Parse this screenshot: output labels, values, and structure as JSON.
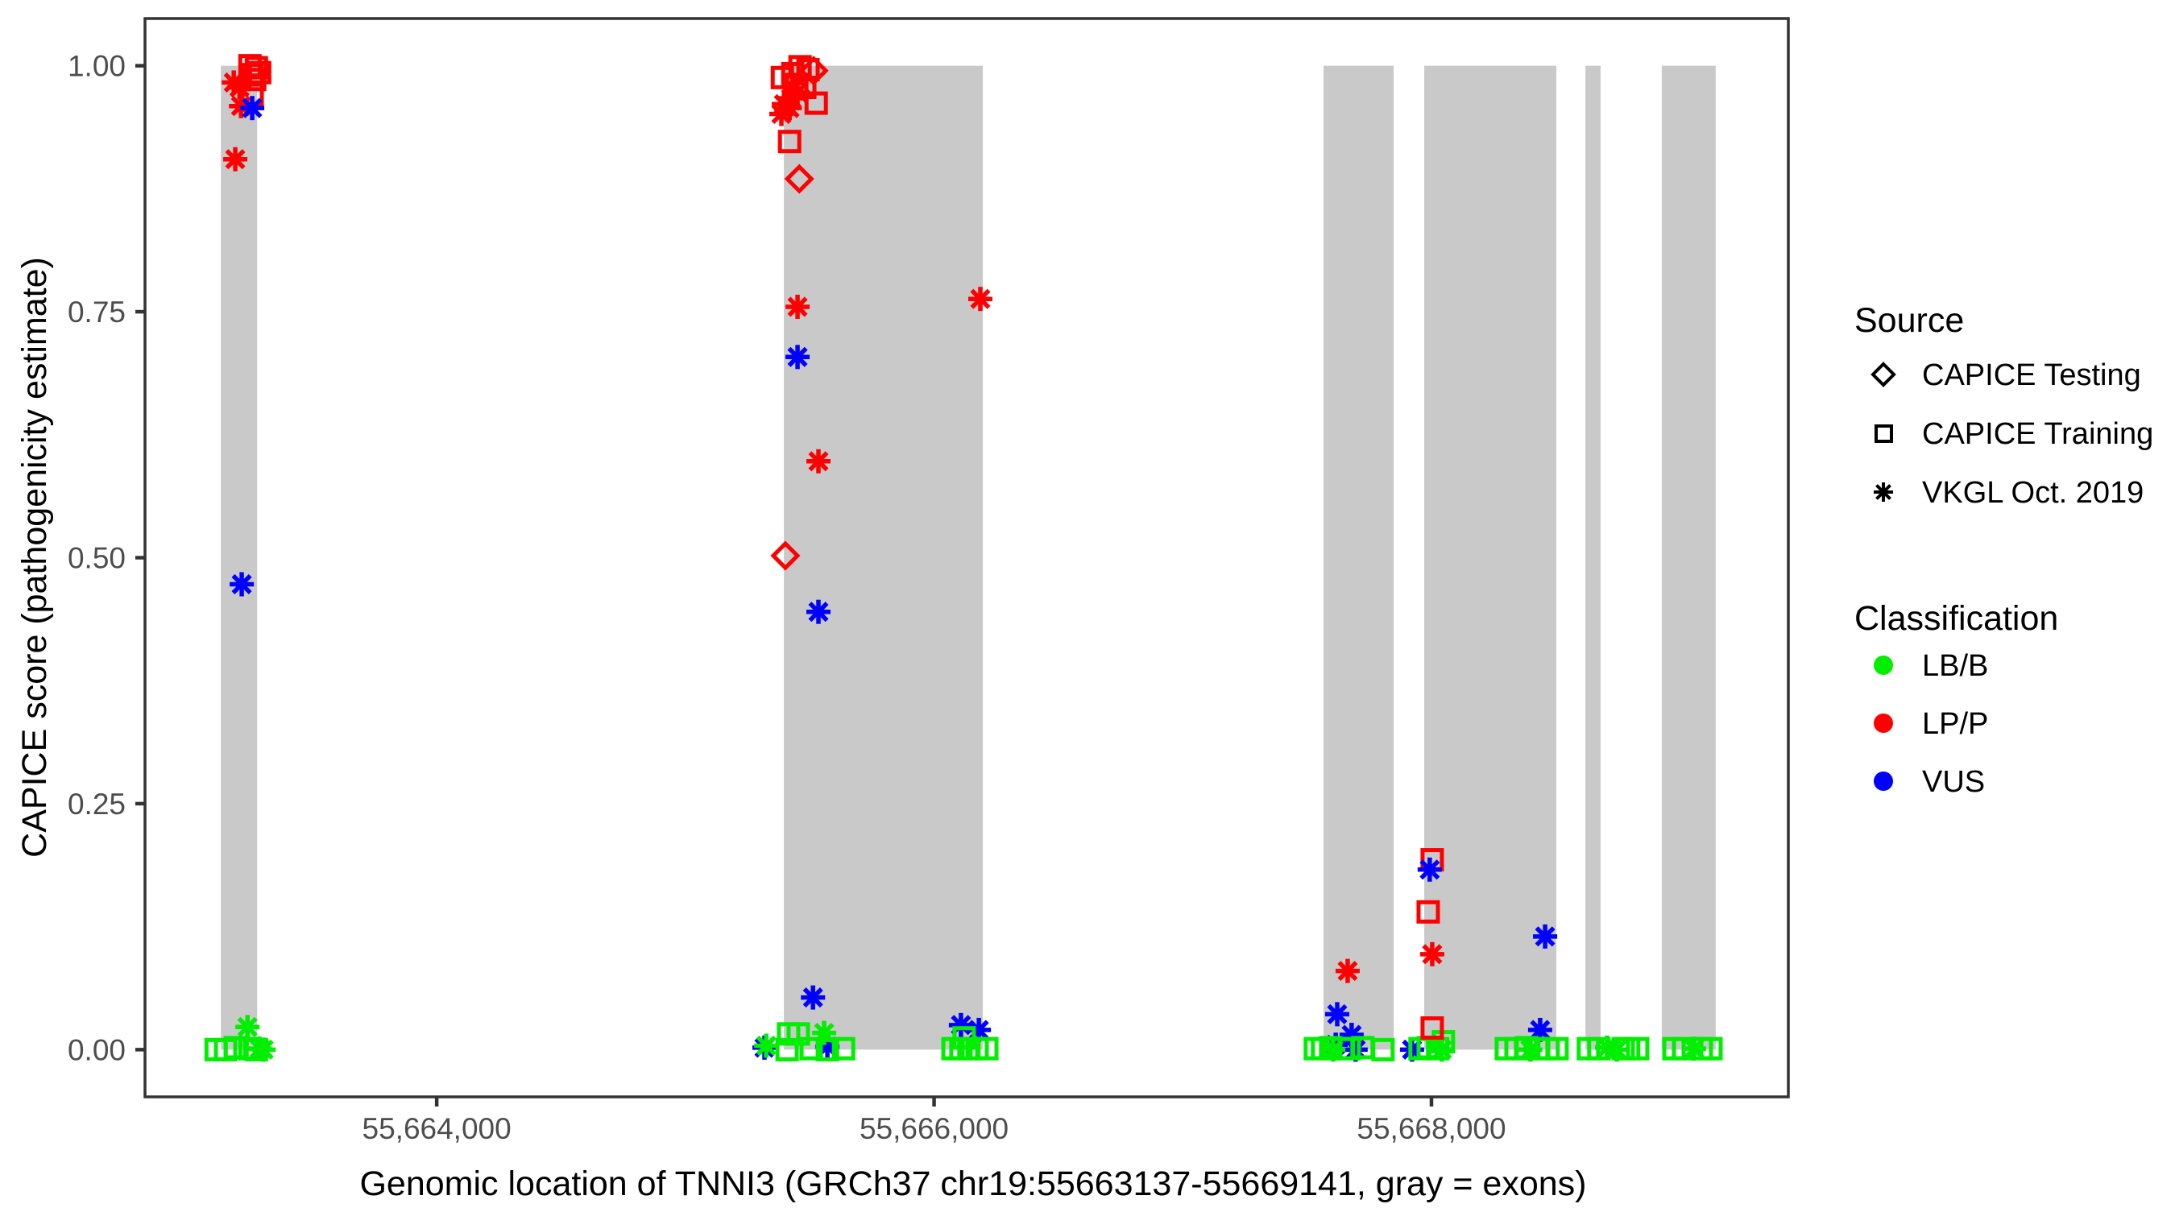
{
  "chart_data": {
    "type": "scatter",
    "title": "",
    "xlabel": "Genomic location of TNNI3 (GRCh37 chr19:55663137-55669141, gray = exons)",
    "ylabel": "CAPICE score (pathogenicity estimate)",
    "xlim": [
      55662827,
      55669435
    ],
    "ylim": [
      -0.048,
      1.048
    ],
    "grid": false,
    "panel_background": "#FFFFFF",
    "panel_border_color": "#333333",
    "x_ticks": [
      {
        "value": 55664000,
        "label": "55,664,000"
      },
      {
        "value": 55666000,
        "label": "55,666,000"
      },
      {
        "value": 55668000,
        "label": "55,668,000"
      }
    ],
    "y_ticks": [
      {
        "value": 0.0,
        "label": "0.00"
      },
      {
        "value": 0.25,
        "label": "0.25"
      },
      {
        "value": 0.5,
        "label": "0.50"
      },
      {
        "value": 0.75,
        "label": "0.75"
      },
      {
        "value": 1.0,
        "label": "1.00"
      }
    ],
    "exon_color": "#C9C9C9",
    "exons": [
      [
        55663132,
        55663278
      ],
      [
        55665396,
        55666196
      ],
      [
        55667566,
        55667848
      ],
      [
        55667971,
        55668502
      ],
      [
        55668619,
        55668680
      ],
      [
        55668926,
        55669143
      ]
    ],
    "shape_by_source": {
      "CAPICE Testing": "diamond",
      "CAPICE Training": "square",
      "VKGL Oct. 2019": "asterisk"
    },
    "color_by_class": {
      "LB/B": "#00EE00",
      "LP/P": "#FF0000",
      "VUS": "#0000FF"
    },
    "points": [
      {
        "x": 55663249,
        "y": 1.0,
        "source": "CAPICE Training",
        "class": "LP/P"
      },
      {
        "x": 55663275,
        "y": 0.998,
        "source": "CAPICE Training",
        "class": "LP/P"
      },
      {
        "x": 55663288,
        "y": 0.993,
        "source": "CAPICE Training",
        "class": "LP/P"
      },
      {
        "x": 55663258,
        "y": 0.991,
        "source": "CAPICE Training",
        "class": "LP/P"
      },
      {
        "x": 55663268,
        "y": 0.986,
        "source": "CAPICE Training",
        "class": "LP/P"
      },
      {
        "x": 55663258,
        "y": 0.971,
        "source": "CAPICE Training",
        "class": "LP/P"
      },
      {
        "x": 55663184,
        "y": 0.983,
        "source": "VKGL Oct. 2019",
        "class": "LP/P"
      },
      {
        "x": 55663207,
        "y": 0.978,
        "source": "VKGL Oct. 2019",
        "class": "LP/P"
      },
      {
        "x": 55663213,
        "y": 0.959,
        "source": "VKGL Oct. 2019",
        "class": "LP/P"
      },
      {
        "x": 55663190,
        "y": 0.905,
        "source": "VKGL Oct. 2019",
        "class": "LP/P"
      },
      {
        "x": 55663258,
        "y": 0.957,
        "source": "VKGL Oct. 2019",
        "class": "VUS"
      },
      {
        "x": 55663216,
        "y": 0.473,
        "source": "VKGL Oct. 2019",
        "class": "VUS"
      },
      {
        "x": 55663113,
        "y": 0.0,
        "source": "CAPICE Training",
        "class": "LB/B"
      },
      {
        "x": 55663151,
        "y": 0.0,
        "source": "CAPICE Training",
        "class": "LB/B"
      },
      {
        "x": 55663190,
        "y": 0.002,
        "source": "CAPICE Training",
        "class": "LB/B"
      },
      {
        "x": 55663249,
        "y": 0.001,
        "source": "CAPICE Training",
        "class": "LB/B"
      },
      {
        "x": 55663275,
        "y": 0.0,
        "source": "CAPICE Training",
        "class": "LB/B"
      },
      {
        "x": 55663239,
        "y": 0.023,
        "source": "VKGL Oct. 2019",
        "class": "LB/B"
      },
      {
        "x": 55663288,
        "y": 0.001,
        "source": "VKGL Oct. 2019",
        "class": "LB/B"
      },
      {
        "x": 55663304,
        "y": 0.0,
        "source": "VKGL Oct. 2019",
        "class": "LB/B"
      },
      {
        "x": 55665390,
        "y": 0.988,
        "source": "CAPICE Training",
        "class": "LP/P"
      },
      {
        "x": 55665432,
        "y": 0.992,
        "source": "CAPICE Training",
        "class": "LP/P"
      },
      {
        "x": 55665461,
        "y": 0.999,
        "source": "CAPICE Training",
        "class": "LP/P"
      },
      {
        "x": 55665493,
        "y": 0.996,
        "source": "CAPICE Training",
        "class": "LP/P"
      },
      {
        "x": 55665448,
        "y": 0.981,
        "source": "CAPICE Training",
        "class": "LP/P"
      },
      {
        "x": 55665480,
        "y": 0.978,
        "source": "CAPICE Training",
        "class": "LP/P"
      },
      {
        "x": 55665526,
        "y": 0.962,
        "source": "CAPICE Training",
        "class": "LP/P"
      },
      {
        "x": 55665419,
        "y": 0.923,
        "source": "CAPICE Training",
        "class": "LP/P"
      },
      {
        "x": 55665516,
        "y": 0.995,
        "source": "CAPICE Testing",
        "class": "LP/P"
      },
      {
        "x": 55665458,
        "y": 0.885,
        "source": "CAPICE Testing",
        "class": "LP/P"
      },
      {
        "x": 55665451,
        "y": 0.973,
        "source": "VKGL Oct. 2019",
        "class": "LP/P"
      },
      {
        "x": 55665425,
        "y": 0.967,
        "source": "VKGL Oct. 2019",
        "class": "LP/P"
      },
      {
        "x": 55665396,
        "y": 0.961,
        "source": "VKGL Oct. 2019",
        "class": "LP/P"
      },
      {
        "x": 55665419,
        "y": 0.957,
        "source": "VKGL Oct. 2019",
        "class": "LP/P"
      },
      {
        "x": 55665386,
        "y": 0.951,
        "source": "VKGL Oct. 2019",
        "class": "LP/P"
      },
      {
        "x": 55665451,
        "y": 0.755,
        "source": "VKGL Oct. 2019",
        "class": "LP/P"
      },
      {
        "x": 55666186,
        "y": 0.763,
        "source": "VKGL Oct. 2019",
        "class": "LP/P"
      },
      {
        "x": 55665535,
        "y": 0.598,
        "source": "VKGL Oct. 2019",
        "class": "LP/P"
      },
      {
        "x": 55665402,
        "y": 0.502,
        "source": "CAPICE Testing",
        "class": "LP/P"
      },
      {
        "x": 55665451,
        "y": 0.704,
        "source": "VKGL Oct. 2019",
        "class": "VUS"
      },
      {
        "x": 55665535,
        "y": 0.445,
        "source": "VKGL Oct. 2019",
        "class": "VUS"
      },
      {
        "x": 55665513,
        "y": 0.053,
        "source": "VKGL Oct. 2019",
        "class": "VUS"
      },
      {
        "x": 55665318,
        "y": 0.002,
        "source": "VKGL Oct. 2019",
        "class": "VUS"
      },
      {
        "x": 55665571,
        "y": 0.003,
        "source": "VKGL Oct. 2019",
        "class": "VUS"
      },
      {
        "x": 55666108,
        "y": 0.025,
        "source": "VKGL Oct. 2019",
        "class": "VUS"
      },
      {
        "x": 55666180,
        "y": 0.02,
        "source": "VKGL Oct. 2019",
        "class": "VUS"
      },
      {
        "x": 55665325,
        "y": 0.004,
        "source": "VKGL Oct. 2019",
        "class": "LB/B"
      },
      {
        "x": 55665558,
        "y": 0.017,
        "source": "VKGL Oct. 2019",
        "class": "LB/B"
      },
      {
        "x": 55665415,
        "y": 0.016,
        "source": "CAPICE Training",
        "class": "LB/B"
      },
      {
        "x": 55665454,
        "y": 0.016,
        "source": "CAPICE Training",
        "class": "LB/B"
      },
      {
        "x": 55665409,
        "y": 0.0,
        "source": "CAPICE Training",
        "class": "LB/B"
      },
      {
        "x": 55665506,
        "y": 0.001,
        "source": "CAPICE Training",
        "class": "LB/B"
      },
      {
        "x": 55665571,
        "y": 0.0,
        "source": "CAPICE Training",
        "class": "LB/B"
      },
      {
        "x": 55665636,
        "y": 0.001,
        "source": "CAPICE Training",
        "class": "LB/B"
      },
      {
        "x": 55666076,
        "y": 0.001,
        "source": "CAPICE Training",
        "class": "LB/B"
      },
      {
        "x": 55666108,
        "y": 0.001,
        "source": "CAPICE Training",
        "class": "LB/B"
      },
      {
        "x": 55666140,
        "y": 0.001,
        "source": "CAPICE Training",
        "class": "LB/B"
      },
      {
        "x": 55666173,
        "y": 0.001,
        "source": "CAPICE Training",
        "class": "LB/B"
      },
      {
        "x": 55666212,
        "y": 0.001,
        "source": "CAPICE Training",
        "class": "LB/B"
      },
      {
        "x": 55666121,
        "y": 0.012,
        "source": "CAPICE Training",
        "class": "LB/B"
      },
      {
        "x": 55667663,
        "y": 0.08,
        "source": "VKGL Oct. 2019",
        "class": "LP/P"
      },
      {
        "x": 55667621,
        "y": 0.036,
        "source": "VKGL Oct. 2019",
        "class": "VUS"
      },
      {
        "x": 55667615,
        "y": 0.005,
        "source": "VKGL Oct. 2019",
        "class": "VUS"
      },
      {
        "x": 55667679,
        "y": 0.015,
        "source": "VKGL Oct. 2019",
        "class": "VUS"
      },
      {
        "x": 55667695,
        "y": 0.0,
        "source": "VKGL Oct. 2019",
        "class": "VUS"
      },
      {
        "x": 55667922,
        "y": 0.0,
        "source": "VKGL Oct. 2019",
        "class": "VUS"
      },
      {
        "x": 55667533,
        "y": 0.001,
        "source": "CAPICE Training",
        "class": "LB/B"
      },
      {
        "x": 55667562,
        "y": 0.001,
        "source": "CAPICE Training",
        "class": "LB/B"
      },
      {
        "x": 55667595,
        "y": 0.002,
        "source": "CAPICE Training",
        "class": "LB/B"
      },
      {
        "x": 55667643,
        "y": 0.001,
        "source": "CAPICE Training",
        "class": "LB/B"
      },
      {
        "x": 55667669,
        "y": 0.001,
        "source": "CAPICE Training",
        "class": "LB/B"
      },
      {
        "x": 55667724,
        "y": 0.002,
        "source": "CAPICE Training",
        "class": "LB/B"
      },
      {
        "x": 55667805,
        "y": 0.0,
        "source": "CAPICE Training",
        "class": "LB/B"
      },
      {
        "x": 55667605,
        "y": 0.0,
        "source": "VKGL Oct. 2019",
        "class": "LB/B"
      },
      {
        "x": 55667954,
        "y": 0.001,
        "source": "CAPICE Training",
        "class": "LB/B"
      },
      {
        "x": 55667987,
        "y": 0.002,
        "source": "CAPICE Training",
        "class": "LB/B"
      },
      {
        "x": 55668025,
        "y": 0.001,
        "source": "CAPICE Training",
        "class": "LB/B"
      },
      {
        "x": 55668048,
        "y": 0.008,
        "source": "CAPICE Training",
        "class": "LB/B"
      },
      {
        "x": 55668042,
        "y": 0.0,
        "source": "VKGL Oct. 2019",
        "class": "LB/B"
      },
      {
        "x": 55668003,
        "y": 0.193,
        "source": "CAPICE Training",
        "class": "LP/P"
      },
      {
        "x": 55667987,
        "y": 0.14,
        "source": "CAPICE Training",
        "class": "LP/P"
      },
      {
        "x": 55668003,
        "y": 0.097,
        "source": "VKGL Oct. 2019",
        "class": "LP/P"
      },
      {
        "x": 55668003,
        "y": 0.022,
        "source": "CAPICE Training",
        "class": "LP/P"
      },
      {
        "x": 55667993,
        "y": 0.183,
        "source": "VKGL Oct. 2019",
        "class": "VUS"
      },
      {
        "x": 55668457,
        "y": 0.115,
        "source": "VKGL Oct. 2019",
        "class": "VUS"
      },
      {
        "x": 55668437,
        "y": 0.02,
        "source": "VKGL Oct. 2019",
        "class": "VUS"
      },
      {
        "x": 55668301,
        "y": 0.001,
        "source": "CAPICE Training",
        "class": "LB/B"
      },
      {
        "x": 55668340,
        "y": 0.001,
        "source": "CAPICE Training",
        "class": "LB/B"
      },
      {
        "x": 55668382,
        "y": 0.002,
        "source": "CAPICE Training",
        "class": "LB/B"
      },
      {
        "x": 55668431,
        "y": 0.001,
        "source": "CAPICE Training",
        "class": "LB/B"
      },
      {
        "x": 55668469,
        "y": 0.001,
        "source": "CAPICE Training",
        "class": "LB/B"
      },
      {
        "x": 55668505,
        "y": 0.001,
        "source": "CAPICE Training",
        "class": "LB/B"
      },
      {
        "x": 55668398,
        "y": 0.0,
        "source": "VKGL Oct. 2019",
        "class": "LB/B"
      },
      {
        "x": 55668631,
        "y": 0.001,
        "source": "CAPICE Training",
        "class": "LB/B"
      },
      {
        "x": 55668673,
        "y": 0.001,
        "source": "CAPICE Training",
        "class": "LB/B"
      },
      {
        "x": 55668706,
        "y": 0.002,
        "source": "VKGL Oct. 2019",
        "class": "LB/B"
      },
      {
        "x": 55668745,
        "y": 0.0,
        "source": "VKGL Oct. 2019",
        "class": "LB/B"
      },
      {
        "x": 55668771,
        "y": 0.001,
        "source": "CAPICE Training",
        "class": "LB/B"
      },
      {
        "x": 55668793,
        "y": 0.001,
        "source": "CAPICE Training",
        "class": "LB/B"
      },
      {
        "x": 55668829,
        "y": 0.001,
        "source": "CAPICE Training",
        "class": "LB/B"
      },
      {
        "x": 55668975,
        "y": 0.001,
        "source": "CAPICE Training",
        "class": "LB/B"
      },
      {
        "x": 55669014,
        "y": 0.001,
        "source": "CAPICE Training",
        "class": "LB/B"
      },
      {
        "x": 55669056,
        "y": 0.001,
        "source": "VKGL Oct. 2019",
        "class": "LB/B"
      },
      {
        "x": 55669085,
        "y": 0.001,
        "source": "CAPICE Training",
        "class": "LB/B"
      },
      {
        "x": 55669124,
        "y": 0.001,
        "source": "CAPICE Training",
        "class": "LB/B"
      }
    ]
  },
  "legend": {
    "source": {
      "title": "Source",
      "items": [
        {
          "label": "CAPICE Testing",
          "shape": "diamond"
        },
        {
          "label": "CAPICE Training",
          "shape": "square"
        },
        {
          "label": "VKGL Oct. 2019",
          "shape": "asterisk"
        }
      ]
    },
    "classification": {
      "title": "Classification",
      "items": [
        {
          "label": "LB/B",
          "color": "#00EE00"
        },
        {
          "label": "LP/P",
          "color": "#FF0000"
        },
        {
          "label": "VUS",
          "color": "#0000FF"
        }
      ]
    }
  }
}
